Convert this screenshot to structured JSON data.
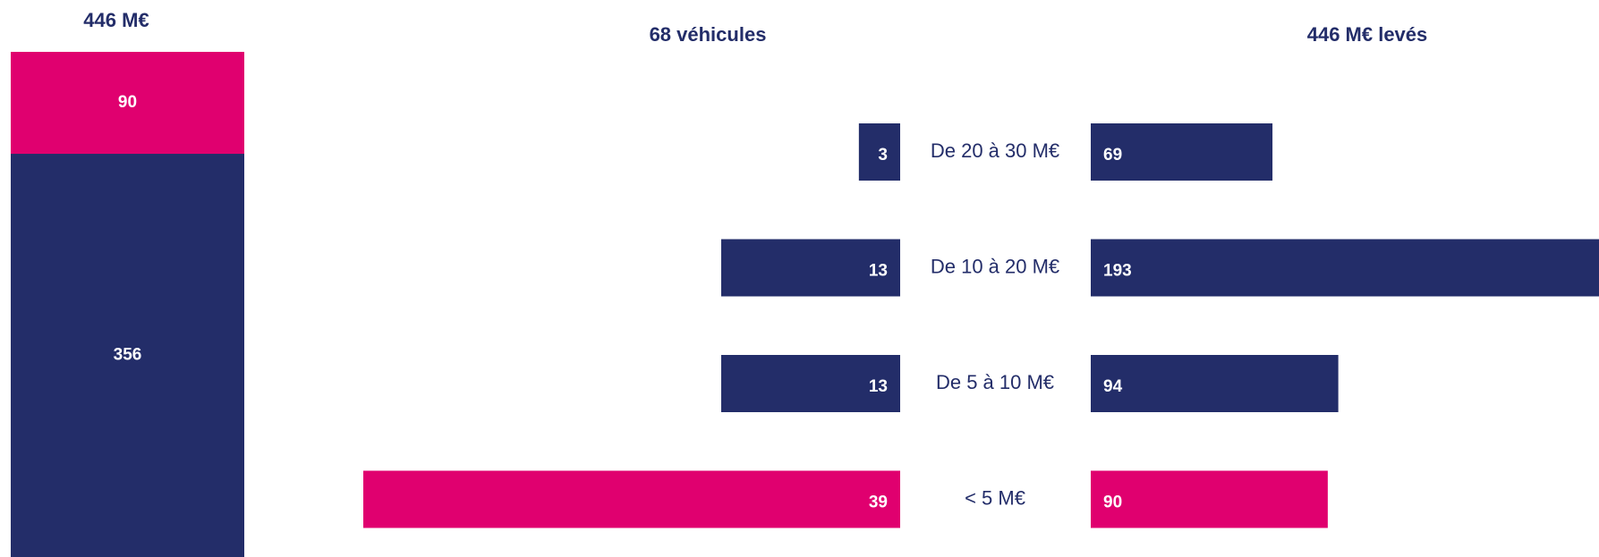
{
  "chart_data": [
    {
      "type": "stacked_column",
      "title": "446 M€",
      "series": [
        {
          "color": "#232d69",
          "values": [
            356
          ]
        },
        {
          "color": "#e0006f",
          "values": [
            90
          ]
        }
      ]
    },
    {
      "type": "butterfly",
      "categories": [
        "De 20 à 30 M€",
        "De 10 à 20 M€",
        "De 5 à 10 M€",
        "< 5 M€"
      ],
      "series": [
        {
          "name": "68 véhicules",
          "values": [
            3,
            13,
            13,
            39
          ],
          "colors": [
            "#232d69",
            "#232d69",
            "#232d69",
            "#e0006f"
          ]
        },
        {
          "name": "446 M€ levés",
          "values": [
            69,
            193,
            94,
            90
          ],
          "colors": [
            "#232d69",
            "#232d69",
            "#232d69",
            "#e0006f"
          ]
        }
      ]
    }
  ]
}
